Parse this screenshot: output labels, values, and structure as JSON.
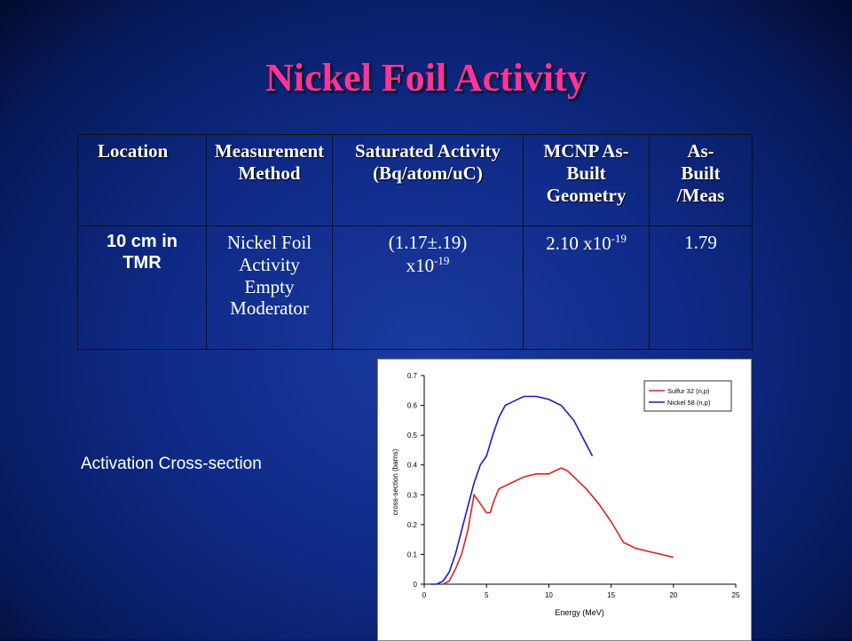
{
  "slide": {
    "title": "Nickel Foil Activity",
    "caption": "Activation Cross-section"
  },
  "table": {
    "headers": [
      "Location",
      "Measurement Method",
      "Saturated Activity (Bq/atom/uC)",
      "MCNP As-Built Geometry",
      "As- Built /Meas"
    ],
    "row": {
      "location": "10 cm in TMR",
      "method": "Nickel Foil Activity Empty Moderator",
      "saturated_main": "(1.17±.19)",
      "saturated_base": "x10",
      "saturated_exp": "-19",
      "mcnp_base": "2.10 x10",
      "mcnp_exp": "-19",
      "ratio": "1.79"
    }
  },
  "chart_data": {
    "type": "line",
    "xlabel": "Energy (MeV)",
    "ylabel": "cross-section (barns)",
    "xlim": [
      0,
      25
    ],
    "ylim": [
      0,
      0.7
    ],
    "xticks": [
      "0",
      "5",
      "10",
      "15",
      "20",
      "25"
    ],
    "yticks": [
      "0",
      "0.1",
      "0.2",
      "0.3",
      "0.4",
      "0.5",
      "0.6",
      "0.7"
    ],
    "legend_position": "top-right",
    "series": [
      {
        "name": "Sulfur 32 (n,p)",
        "color": "#e02020",
        "x": [
          1.5,
          2.0,
          2.5,
          3.0,
          3.5,
          4.0,
          4.5,
          5.0,
          5.3,
          5.6,
          6.0,
          6.5,
          7.0,
          8.0,
          9.0,
          10.0,
          10.5,
          11.0,
          11.5,
          12.0,
          13.0,
          14.0,
          15.0,
          16.0,
          17.0,
          18.0,
          19.0,
          20.0
        ],
        "y": [
          0,
          0.01,
          0.05,
          0.1,
          0.18,
          0.3,
          0.27,
          0.24,
          0.24,
          0.28,
          0.32,
          0.33,
          0.34,
          0.36,
          0.37,
          0.37,
          0.38,
          0.39,
          0.38,
          0.36,
          0.32,
          0.27,
          0.21,
          0.14,
          0.12,
          0.11,
          0.1,
          0.09
        ]
      },
      {
        "name": "Nickel 58 (n,p)",
        "color": "#1a1acc",
        "x": [
          0.5,
          1.0,
          1.5,
          2.0,
          2.5,
          3.0,
          3.5,
          4.0,
          4.5,
          5.0,
          5.5,
          6.0,
          6.5,
          7.0,
          8.0,
          9.0,
          10.0,
          11.0,
          12.0,
          12.5,
          13.0,
          13.5
        ],
        "y": [
          0,
          0,
          0.01,
          0.04,
          0.1,
          0.18,
          0.26,
          0.34,
          0.4,
          0.43,
          0.5,
          0.56,
          0.6,
          0.61,
          0.63,
          0.63,
          0.62,
          0.6,
          0.55,
          0.51,
          0.47,
          0.43
        ]
      }
    ]
  }
}
